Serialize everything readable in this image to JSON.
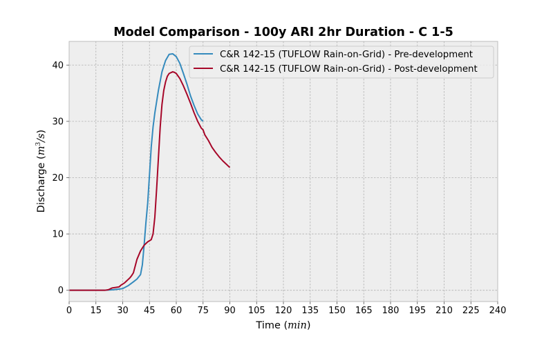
{
  "chart_data": {
    "type": "line",
    "title": "Model Comparison - 100y ARI 2hr Duration - C 1-5",
    "xlabel": "Time (",
    "xlabel_unit": "min",
    "xlabel_close": ")",
    "ylabel": "Discharge (",
    "ylabel_unit": "m",
    "ylabel_sup": "3",
    "ylabel_unit2": "/s",
    "ylabel_close": ")",
    "xlim": [
      0,
      240
    ],
    "ylim": [
      -2,
      44.2
    ],
    "xticks": [
      0,
      15,
      30,
      45,
      60,
      75,
      90,
      105,
      120,
      135,
      150,
      165,
      180,
      195,
      210,
      225,
      240
    ],
    "yticks": [
      0,
      10,
      20,
      30,
      40
    ],
    "grid": true,
    "legend_position": "top-right",
    "series": [
      {
        "name": "C&R 142-15 (TUFLOW Rain-on-Grid) - Pre-development",
        "color": "#348abd",
        "x": [
          0,
          20,
          25,
          30,
          33,
          36,
          38,
          40,
          41,
          42,
          43,
          44,
          45,
          46,
          47,
          48,
          50,
          52,
          54,
          56,
          58,
          60,
          62,
          64,
          66,
          68,
          70,
          72,
          74,
          75
        ],
        "y": [
          0,
          0,
          0.1,
          0.3,
          0.8,
          1.5,
          2.0,
          2.8,
          4.5,
          8.0,
          12.0,
          15.5,
          20.5,
          25.5,
          29.0,
          31.5,
          35.5,
          38.8,
          40.8,
          41.9,
          42.0,
          41.5,
          40.3,
          38.5,
          36.6,
          34.5,
          32.8,
          31.3,
          30.3,
          30.0
        ]
      },
      {
        "name": "C&R 142-15 (TUFLOW Rain-on-Grid) - Post-development",
        "color": "#a60628",
        "x": [
          0,
          20,
          22,
          24,
          26,
          28,
          29,
          30,
          31,
          32,
          33,
          34,
          35,
          36,
          37,
          38,
          40,
          42,
          44,
          46,
          47,
          48,
          49,
          50,
          51,
          52,
          53,
          54,
          55,
          56,
          58,
          59,
          60,
          62,
          64,
          66,
          68,
          70,
          72,
          74,
          75,
          76,
          78,
          80,
          82,
          84,
          86,
          88,
          90
        ],
        "y": [
          0,
          0,
          0.1,
          0.4,
          0.5,
          0.6,
          0.9,
          1.1,
          1.3,
          1.6,
          1.9,
          2.2,
          2.6,
          3.1,
          4.3,
          5.5,
          7.0,
          8.0,
          8.6,
          9.0,
          10.0,
          13.0,
          18.0,
          23.5,
          29.0,
          33.0,
          35.5,
          37.0,
          38.0,
          38.5,
          38.8,
          38.7,
          38.5,
          37.6,
          36.3,
          34.8,
          33.2,
          31.5,
          30.0,
          28.8,
          28.5,
          27.6,
          26.6,
          25.4,
          24.5,
          23.7,
          23.0,
          22.4,
          21.8
        ]
      }
    ]
  }
}
